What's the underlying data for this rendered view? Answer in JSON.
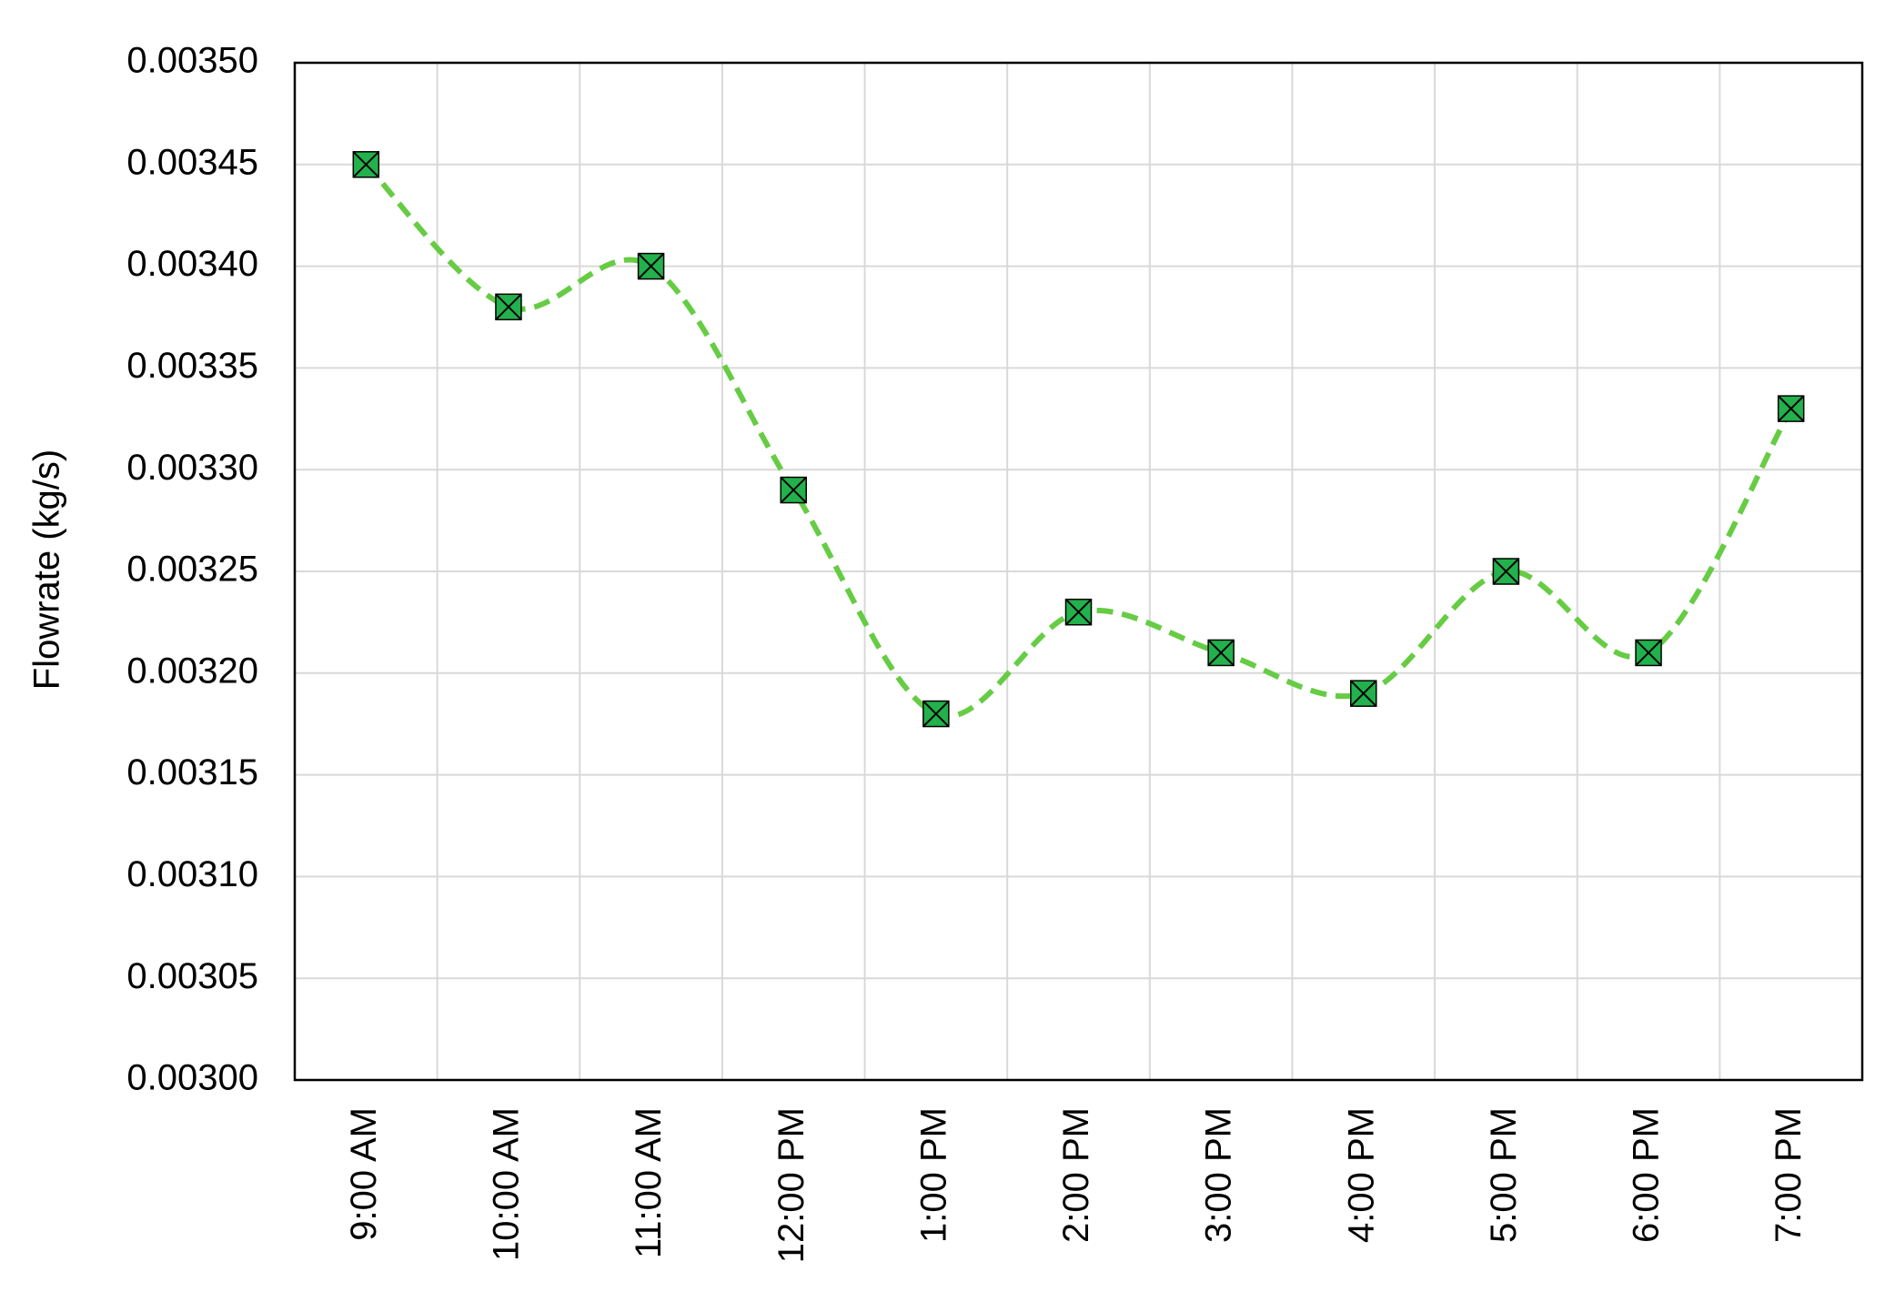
{
  "chart_data": {
    "type": "line",
    "y_label": "Flowrate (kg/s)",
    "categories": [
      "9:00 AM",
      "10:00 AM",
      "11:00 AM",
      "12:00 PM",
      "1:00 PM",
      "2:00 PM",
      "3:00 PM",
      "4:00 PM",
      "5:00 PM",
      "6:00 PM",
      "7:00 PM"
    ],
    "series": [
      {
        "color": "#66cc44",
        "marker_color": "#22b14c",
        "values": [
          0.00345,
          0.00338,
          0.0034,
          0.00329,
          0.00318,
          0.00323,
          0.00321,
          0.00319,
          0.00325,
          0.00321,
          0.00333
        ]
      }
    ],
    "ylim": [
      0.003,
      0.0035
    ],
    "yticks": [
      {
        "value": 0.003,
        "label": "0.00300"
      },
      0.00305,
      {
        "value": 0.0031,
        "label": "0.00310"
      },
      0.00315,
      {
        "value": 0.0032,
        "label": "0.00320"
      },
      0.00325,
      {
        "value": 0.0033,
        "label": "0.00330"
      },
      0.00335,
      {
        "value": 0.0034,
        "label": "0.00340"
      },
      0.00345,
      {
        "value": 0.0035,
        "label": "0.00350"
      }
    ],
    "grid": true,
    "smooth": true,
    "dashed": true
  }
}
